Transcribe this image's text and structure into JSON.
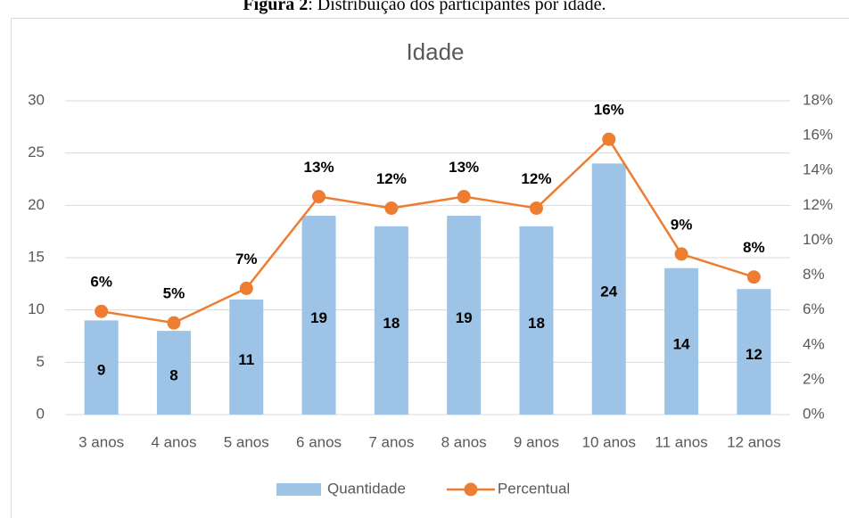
{
  "caption_label": "Figura 2",
  "caption_text": ": Distribuição dos participantes por idade.",
  "chart_data": {
    "type": "bar",
    "title": "Idade",
    "categories": [
      "3 anos",
      "4 anos",
      "5 anos",
      "6 anos",
      "7 anos",
      "8 anos",
      "9 anos",
      "10 anos",
      "11 anos",
      "12 anos"
    ],
    "series": [
      {
        "name": "Quantidade",
        "type": "bar",
        "color": "#9dc3e6",
        "values": [
          9,
          8,
          11,
          19,
          18,
          19,
          18,
          24,
          14,
          12
        ]
      },
      {
        "name": "Percentual",
        "type": "line",
        "axis": "y2",
        "color": "#ed7d31",
        "values": [
          5.92,
          5.26,
          7.24,
          12.5,
          11.84,
          12.5,
          11.84,
          15.79,
          9.21,
          7.89
        ],
        "value_labels": [
          "6%",
          "5%",
          "7%",
          "13%",
          "12%",
          "13%",
          "12%",
          "16%",
          "9%",
          "8%"
        ]
      }
    ],
    "ylim": [
      0,
      30
    ],
    "yticks": [
      0,
      5,
      10,
      15,
      20,
      25,
      30
    ],
    "y2lim": [
      0,
      18
    ],
    "y2ticks": [
      {
        "value": 0,
        "label": "0%"
      },
      {
        "value": 2,
        "label": "2%"
      },
      {
        "value": 4,
        "label": "4%"
      },
      {
        "value": 6,
        "label": "6%"
      },
      {
        "value": 8,
        "label": "8%"
      },
      {
        "value": 10,
        "label": "10%"
      },
      {
        "value": 12,
        "label": "12%"
      },
      {
        "value": 14,
        "label": "14%"
      },
      {
        "value": 16,
        "label": "16%"
      },
      {
        "value": 18,
        "label": "18%"
      }
    ],
    "grid": true,
    "legend": "bottom"
  }
}
